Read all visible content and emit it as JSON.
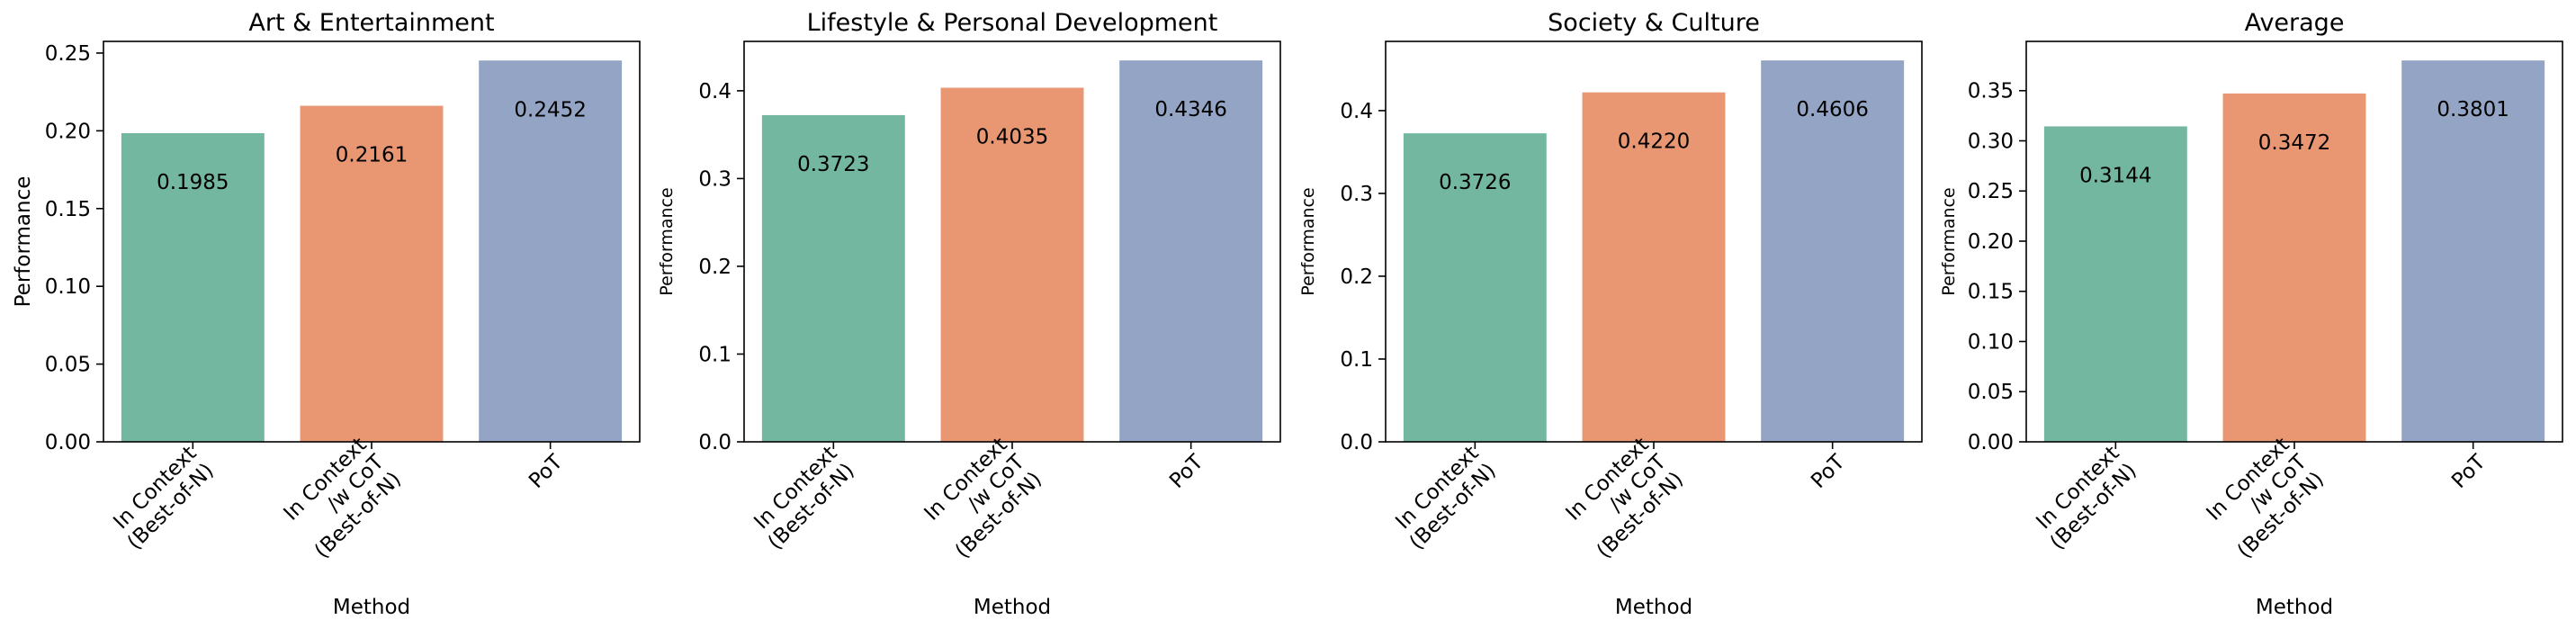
{
  "figure": {
    "background": "#ffffff"
  },
  "chart_data": [
    {
      "type": "bar",
      "title": "Art & Entertainment",
      "xlabel": "Method",
      "ylabel": "Performance",
      "categories": [
        "In Context (Best-of-N)",
        "In Context /w CoT (Best-of-N)",
        "PoT"
      ],
      "category_lines": [
        [
          "In Context",
          "(Best-of-N)"
        ],
        [
          "In Context",
          "/w CoT",
          "(Best-of-N)"
        ],
        [
          "PoT"
        ]
      ],
      "values": [
        0.1985,
        0.2161,
        0.2452
      ],
      "value_labels": [
        "0.1985",
        "0.2161",
        "0.2452"
      ],
      "colors": [
        "#73b7a1",
        "#e99673",
        "#93a4c4"
      ],
      "ylim": [
        0,
        0.2575
      ],
      "yticks": [
        "0.00",
        "0.05",
        "0.10",
        "0.15",
        "0.20",
        "0.25"
      ],
      "ytick_values": [
        0,
        0.05,
        0.1,
        0.15,
        0.2,
        0.25
      ],
      "grid": false,
      "legend": "none"
    },
    {
      "type": "bar",
      "title": "Lifestyle & Personal Development",
      "xlabel": "Method",
      "ylabel": "Performance",
      "categories": [
        "In Context (Best-of-N)",
        "In Context /w CoT (Best-of-N)",
        "PoT"
      ],
      "category_lines": [
        [
          "In Context",
          "(Best-of-N)"
        ],
        [
          "In Context",
          "/w CoT",
          "(Best-of-N)"
        ],
        [
          "PoT"
        ]
      ],
      "values": [
        0.3723,
        0.4035,
        0.4346
      ],
      "value_labels": [
        "0.3723",
        "0.4035",
        "0.4346"
      ],
      "colors": [
        "#73b7a1",
        "#e99673",
        "#93a4c4"
      ],
      "ylim": [
        0,
        0.4563
      ],
      "yticks": [
        "0.0",
        "0.1",
        "0.2",
        "0.3",
        "0.4"
      ],
      "ytick_values": [
        0,
        0.1,
        0.2,
        0.3,
        0.4
      ],
      "grid": false,
      "legend": "none"
    },
    {
      "type": "bar",
      "title": "Society & Culture",
      "xlabel": "Method",
      "ylabel": "Performance",
      "categories": [
        "In Context (Best-of-N)",
        "In Context /w CoT (Best-of-N)",
        "PoT"
      ],
      "category_lines": [
        [
          "In Context",
          "(Best-of-N)"
        ],
        [
          "In Context",
          "/w CoT",
          "(Best-of-N)"
        ],
        [
          "PoT"
        ]
      ],
      "values": [
        0.3726,
        0.422,
        0.4606
      ],
      "value_labels": [
        "0.3726",
        "0.4220",
        "0.4606"
      ],
      "colors": [
        "#73b7a1",
        "#e99673",
        "#93a4c4"
      ],
      "ylim": [
        0,
        0.4836
      ],
      "yticks": [
        "0.0",
        "0.1",
        "0.2",
        "0.3",
        "0.4"
      ],
      "ytick_values": [
        0,
        0.1,
        0.2,
        0.3,
        0.4
      ],
      "grid": false,
      "legend": "none"
    },
    {
      "type": "bar",
      "title": "Average",
      "xlabel": "Method",
      "ylabel": "Performance",
      "categories": [
        "In Context (Best-of-N)",
        "In Context /w CoT (Best-of-N)",
        "PoT"
      ],
      "category_lines": [
        [
          "In Context",
          "(Best-of-N)"
        ],
        [
          "In Context",
          "/w CoT",
          "(Best-of-N)"
        ],
        [
          "PoT"
        ]
      ],
      "values": [
        0.3144,
        0.3472,
        0.3801
      ],
      "value_labels": [
        "0.3144",
        "0.3472",
        "0.3801"
      ],
      "colors": [
        "#73b7a1",
        "#e99673",
        "#93a4c4"
      ],
      "ylim": [
        0,
        0.3991
      ],
      "yticks": [
        "0.00",
        "0.05",
        "0.10",
        "0.15",
        "0.20",
        "0.25",
        "0.30",
        "0.35"
      ],
      "ytick_values": [
        0,
        0.05,
        0.1,
        0.15,
        0.2,
        0.25,
        0.3,
        0.35
      ],
      "grid": false,
      "legend": "none"
    }
  ]
}
